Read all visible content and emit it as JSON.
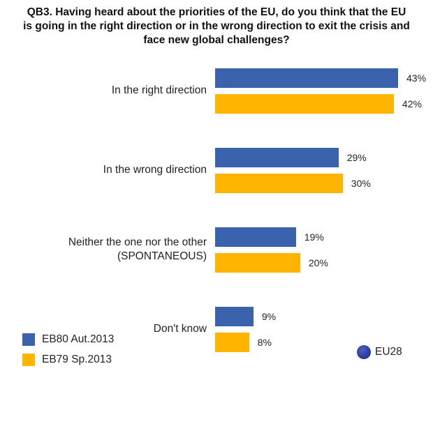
{
  "chart_data": {
    "type": "bar",
    "orientation": "horizontal",
    "title": "QB3. Having heard about the priorities of the EU, do you think that the EU is going in the right direction or in the wrong direction to exit the crisis and face new global challenges?",
    "title_lines": [
      "QB3. Having heard about the priorities of the EU, do you think that the EU",
      "is going in the right direction or in the wrong direction to exit the crisis and",
      "face new global challenges?"
    ],
    "categories": [
      "In the right direction",
      "In the wrong direction",
      "Neither the one nor the other (SPONTANEOUS)",
      "Don't know"
    ],
    "category_lines": [
      [
        "In the right direction"
      ],
      [
        "In the wrong direction"
      ],
      [
        "Neither the one nor the other",
        "(SPONTANEOUS)"
      ],
      [
        "Don't know"
      ]
    ],
    "series": [
      {
        "name": "EB80 Aut.2013",
        "color": "#3A62AD",
        "values": [
          43,
          29,
          19,
          9
        ]
      },
      {
        "name": "EB79 Sp.2013",
        "color": "#FFB400",
        "values": [
          42,
          30,
          20,
          8
        ]
      }
    ],
    "value_suffix": "%",
    "xlim": [
      0,
      50
    ],
    "grid": false,
    "legend_position": "bottom-left",
    "scope_label": "EU28",
    "scope_icon": "eu-flag-icon"
  }
}
